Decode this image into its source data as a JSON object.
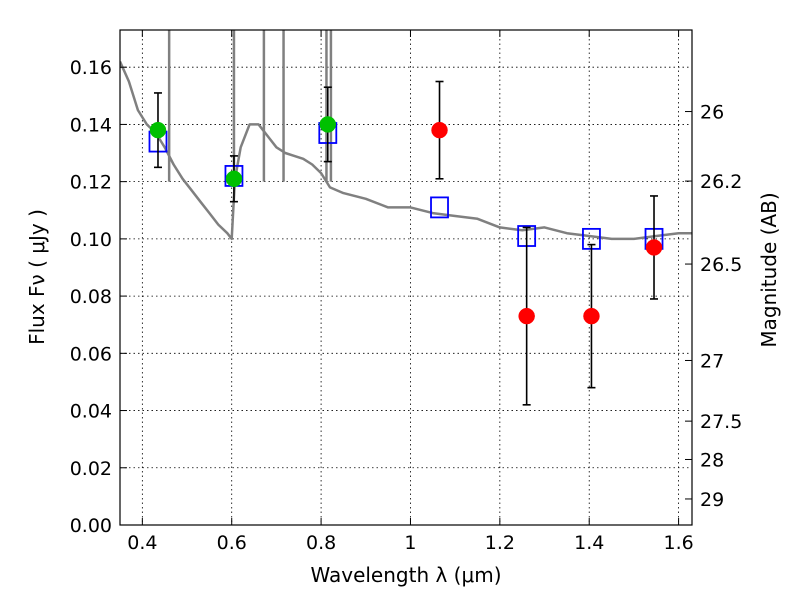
{
  "chart_data": {
    "type": "scatter",
    "xlabel": "Wavelength  λ (μm)",
    "ylabel": "Flux  Fν  ( μJy )",
    "ylabel_right": "Magnitude (AB)",
    "xlim": [
      0.35,
      1.63
    ],
    "ylim": [
      0.0,
      0.173
    ],
    "grid": true,
    "x_ticks": [
      0.4,
      0.6,
      0.8,
      1.0,
      1.2,
      1.4,
      1.6
    ],
    "x_tick_labels": [
      "0.4",
      "0.6",
      "0.8",
      "1",
      "1.2",
      "1.4",
      "1.6"
    ],
    "y_ticks": [
      0.0,
      0.02,
      0.04,
      0.06,
      0.08,
      0.1,
      0.12,
      0.14,
      0.16
    ],
    "y_tick_labels": [
      "0.00",
      "0.02",
      "0.04",
      "0.06",
      "0.08",
      "0.10",
      "0.12",
      "0.14",
      "0.16"
    ],
    "right_ticks": [
      {
        "flux": 0.1445,
        "label": "26"
      },
      {
        "flux": 0.1202,
        "label": "26.2"
      },
      {
        "flux": 0.0912,
        "label": "26.5"
      },
      {
        "flux": 0.0575,
        "label": "27"
      },
      {
        "flux": 0.0363,
        "label": "27.5"
      },
      {
        "flux": 0.0229,
        "label": "28"
      },
      {
        "flux": 0.0091,
        "label": "29"
      }
    ],
    "series": [
      {
        "role": "model_sed",
        "color": "#808080",
        "x": [
          0.35,
          0.37,
          0.39,
          0.41,
          0.43,
          0.45,
          0.47,
          0.49,
          0.51,
          0.53,
          0.55,
          0.57,
          0.59,
          0.6,
          0.607,
          0.612,
          0.62,
          0.64,
          0.66,
          0.68,
          0.7,
          0.72,
          0.74,
          0.76,
          0.78,
          0.8,
          0.82,
          0.85,
          0.9,
          0.95,
          1.0,
          1.05,
          1.1,
          1.15,
          1.2,
          1.25,
          1.3,
          1.35,
          1.4,
          1.45,
          1.5,
          1.55,
          1.6,
          1.63
        ],
        "values": [
          0.162,
          0.155,
          0.145,
          0.14,
          0.137,
          0.132,
          0.126,
          0.121,
          0.117,
          0.113,
          0.109,
          0.105,
          0.102,
          0.1,
          0.12,
          0.125,
          0.132,
          0.14,
          0.14,
          0.136,
          0.132,
          0.13,
          0.129,
          0.128,
          0.126,
          0.123,
          0.118,
          0.116,
          0.114,
          0.111,
          0.111,
          0.109,
          0.108,
          0.107,
          0.104,
          0.103,
          0.104,
          0.102,
          0.101,
          0.1,
          0.1,
          0.101,
          0.102,
          0.102
        ]
      },
      {
        "role": "synthetic_photometry",
        "marker": "open-square",
        "color": "#0000ff",
        "x": [
          0.435,
          0.605,
          0.815,
          1.065,
          1.26,
          1.405,
          1.545
        ],
        "values": [
          0.134,
          0.122,
          0.137,
          0.111,
          0.101,
          0.1,
          0.1
        ]
      },
      {
        "role": "measured_green",
        "marker": "filled-circle",
        "color": "#00c000",
        "x": [
          0.435,
          0.605,
          0.815
        ],
        "values": [
          0.138,
          0.121,
          0.14
        ],
        "yerr": [
          0.013,
          0.008,
          0.013
        ]
      },
      {
        "role": "measured_red",
        "marker": "filled-circle",
        "color": "#ff0000",
        "x": [
          1.065,
          1.26,
          1.405,
          1.545
        ],
        "values": [
          0.138,
          0.073,
          0.073,
          0.097
        ],
        "yerr": [
          0.017,
          0.031,
          0.025,
          0.018
        ]
      }
    ]
  }
}
